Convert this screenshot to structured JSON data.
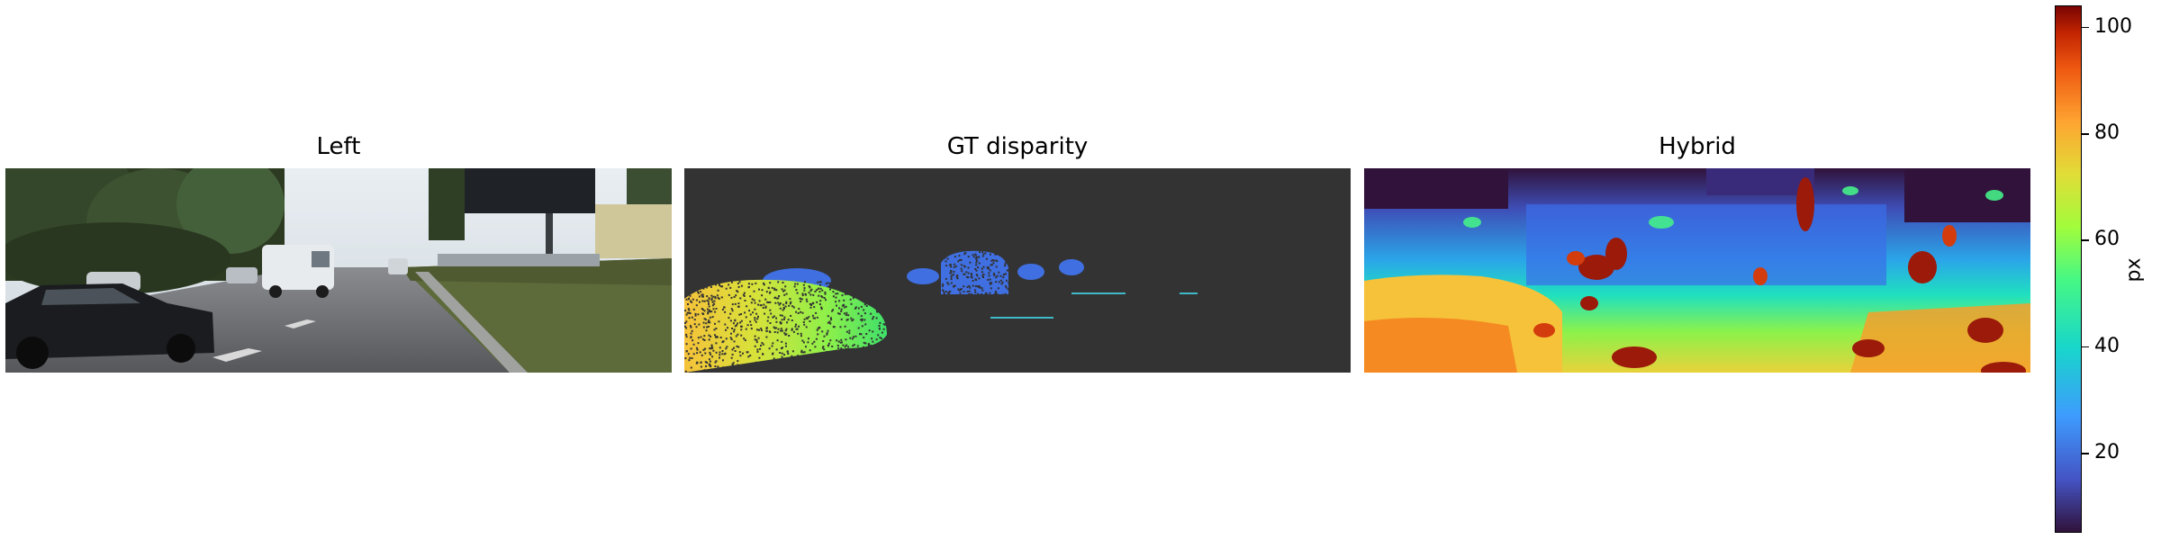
{
  "panels": [
    {
      "title": "Left"
    },
    {
      "title": "GT disparity"
    },
    {
      "title": "Hybrid"
    }
  ],
  "colorbar": {
    "label": "px",
    "range": [
      5,
      104
    ],
    "ticks": [
      20,
      40,
      60,
      80,
      100
    ],
    "colormap": "turbo"
  }
}
